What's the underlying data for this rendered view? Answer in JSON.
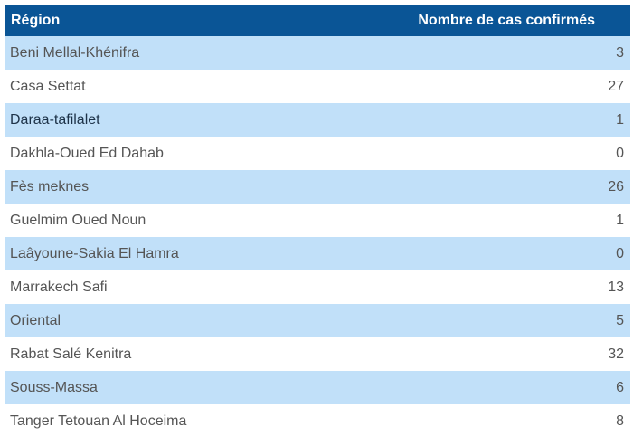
{
  "table": {
    "headers": {
      "region": "Région",
      "cases": "Nombre de cas confirmés"
    },
    "rows": [
      {
        "region": "Beni Mellal-Khénifra",
        "cases": "3"
      },
      {
        "region": "Casa Settat",
        "cases": "27"
      },
      {
        "region": "Daraa-tafilalet",
        "cases": "1"
      },
      {
        "region": "Dakhla-Oued Ed Dahab",
        "cases": "0"
      },
      {
        "region": "Fès meknes",
        "cases": "26"
      },
      {
        "region": "Guelmim Oued Noun",
        "cases": "1"
      },
      {
        "region": "Laâyoune-Sakia El Hamra",
        "cases": "0"
      },
      {
        "region": "Marrakech Safi",
        "cases": "13"
      },
      {
        "region": "Oriental",
        "cases": "5"
      },
      {
        "region": "Rabat Salé Kenitra",
        "cases": "32"
      },
      {
        "region": "Souss-Massa",
        "cases": "6"
      },
      {
        "region": "Tanger Tetouan Al Hoceima",
        "cases": "8"
      }
    ]
  },
  "colors": {
    "header_bg": "#0a5596",
    "header_text": "#ffffff",
    "row_alt_bg": "#c1e0f9",
    "row_bg": "#ffffff",
    "text": "#555555"
  }
}
